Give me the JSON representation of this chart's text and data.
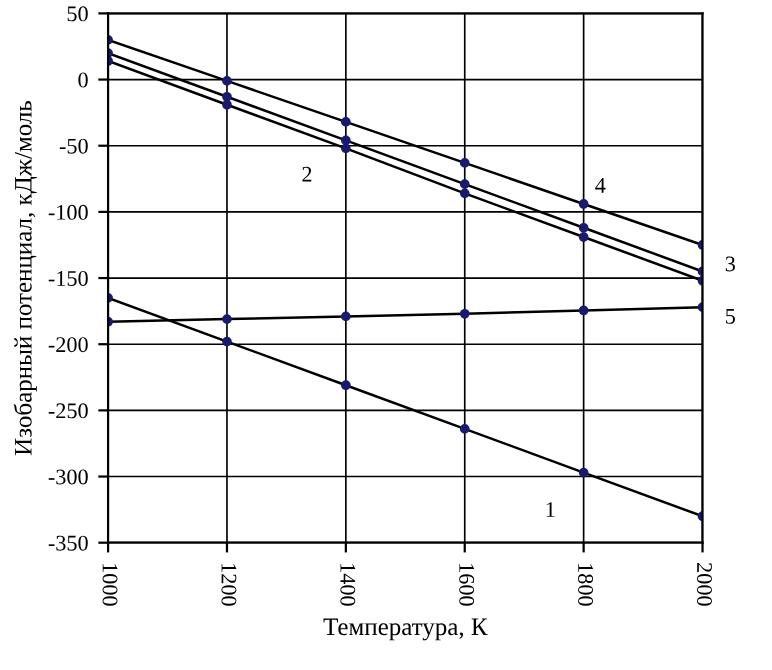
{
  "chart_data": {
    "type": "line",
    "xlabel": "Температура, К",
    "ylabel": "Изобарный потенциал, кДж/моль",
    "x": [
      1000,
      1200,
      1400,
      1600,
      1800,
      2000
    ],
    "series": [
      {
        "name": "1",
        "color": "#000000",
        "values": [
          -165,
          -198,
          -231,
          -264,
          -297,
          -330
        ]
      },
      {
        "name": "2",
        "color": "#000000",
        "values": [
          14,
          -19,
          -52,
          -86,
          -119,
          -152
        ]
      },
      {
        "name": "3",
        "color": "#000000",
        "values": [
          20,
          -13,
          -46,
          -79,
          -112,
          -145
        ]
      },
      {
        "name": "4",
        "color": "#000000",
        "values": [
          30,
          -1,
          -32,
          -63,
          -94,
          -125
        ]
      },
      {
        "name": "5",
        "color": "#000000",
        "values": [
          -183,
          -181,
          -179,
          -177,
          -174.5,
          -172
        ]
      }
    ],
    "xlim": [
      1000,
      2000
    ],
    "xticks": [
      1000,
      1200,
      1400,
      1600,
      1800,
      2000
    ],
    "ylim": [
      -350,
      50
    ],
    "yticks": [
      -350,
      -300,
      -250,
      -200,
      -150,
      -100,
      -50,
      0,
      50
    ],
    "grid": true,
    "marker": "circle",
    "line_style": "solid",
    "legend": false
  }
}
